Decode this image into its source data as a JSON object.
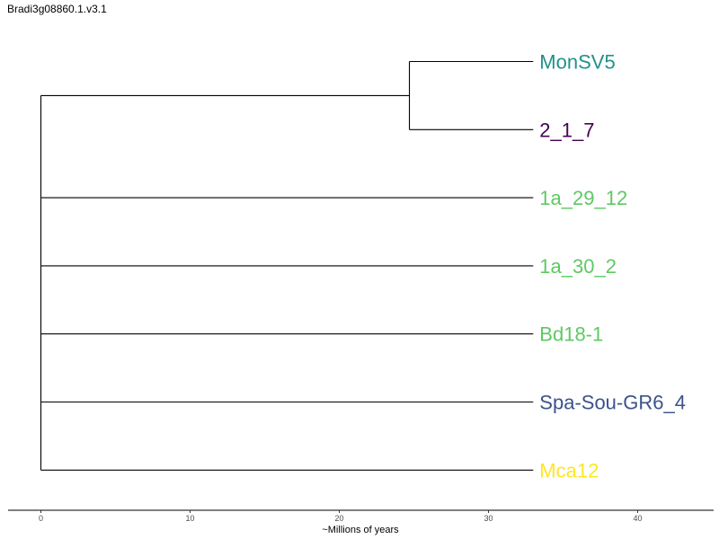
{
  "title": "Bradi3g08860.1.v3.1",
  "axis": {
    "label": "~Millions of years",
    "range": [
      -2.2,
      45
    ],
    "ticks": [
      0,
      10,
      20,
      30,
      40
    ]
  },
  "tree": {
    "root_age": 0,
    "clade_node": {
      "id": "clade-monsv5-2_1_7",
      "position": 24.7,
      "children": [
        "MonSV5",
        "2_1_7"
      ]
    },
    "tip_position": 33
  },
  "tips": [
    {
      "label": "MonSV5",
      "color": "#21918c",
      "parent": "clade-monsv5-2_1_7"
    },
    {
      "label": "2_1_7",
      "color": "#440154",
      "parent": "clade-monsv5-2_1_7"
    },
    {
      "label": "1a_29_12",
      "color": "#5ec962",
      "parent": "root"
    },
    {
      "label": "1a_30_2",
      "color": "#5ec962",
      "parent": "root"
    },
    {
      "label": "Bd18-1",
      "color": "#5ec962",
      "parent": "root"
    },
    {
      "label": "Spa-Sou-GR6_4",
      "color": "#3b528b",
      "parent": "root"
    },
    {
      "label": "Mca12",
      "color": "#fde725",
      "parent": "root"
    }
  ]
}
